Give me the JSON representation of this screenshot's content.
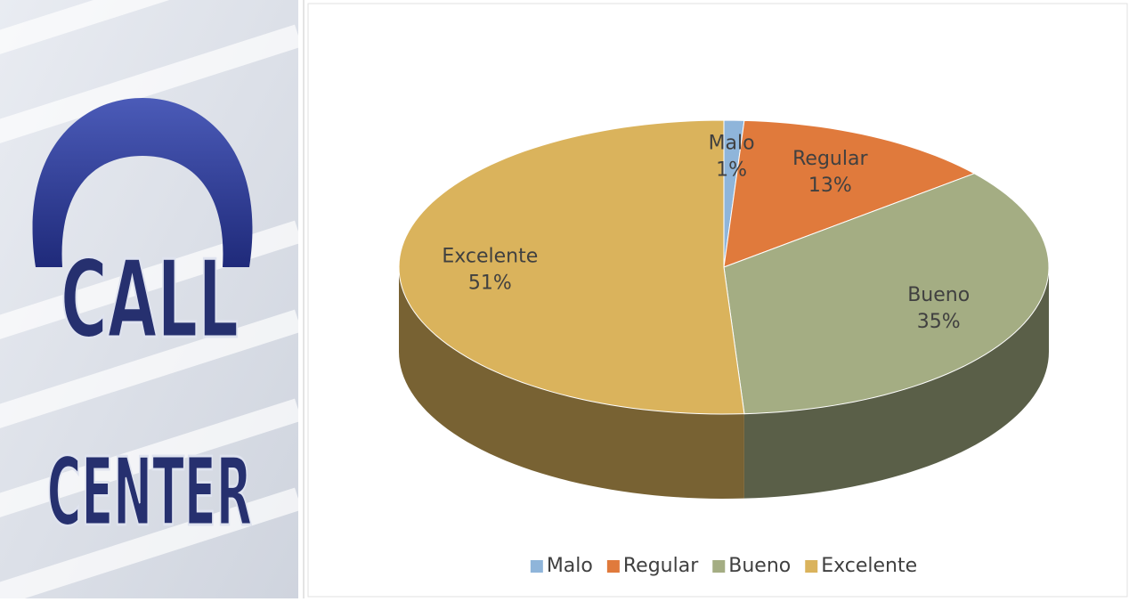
{
  "logo": {
    "lines": [
      "CALL",
      "CENTER"
    ]
  },
  "chart_data": {
    "type": "pie",
    "categories": [
      "Malo",
      "Regular",
      "Bueno",
      "Excelente"
    ],
    "values": [
      1,
      13,
      35,
      51
    ],
    "value_labels": [
      "1%",
      "13%",
      "35%",
      "51%"
    ],
    "colors": [
      "#8fb5da",
      "#e07a3c",
      "#a4ad83",
      "#dab35c"
    ],
    "legend": "bottom"
  }
}
